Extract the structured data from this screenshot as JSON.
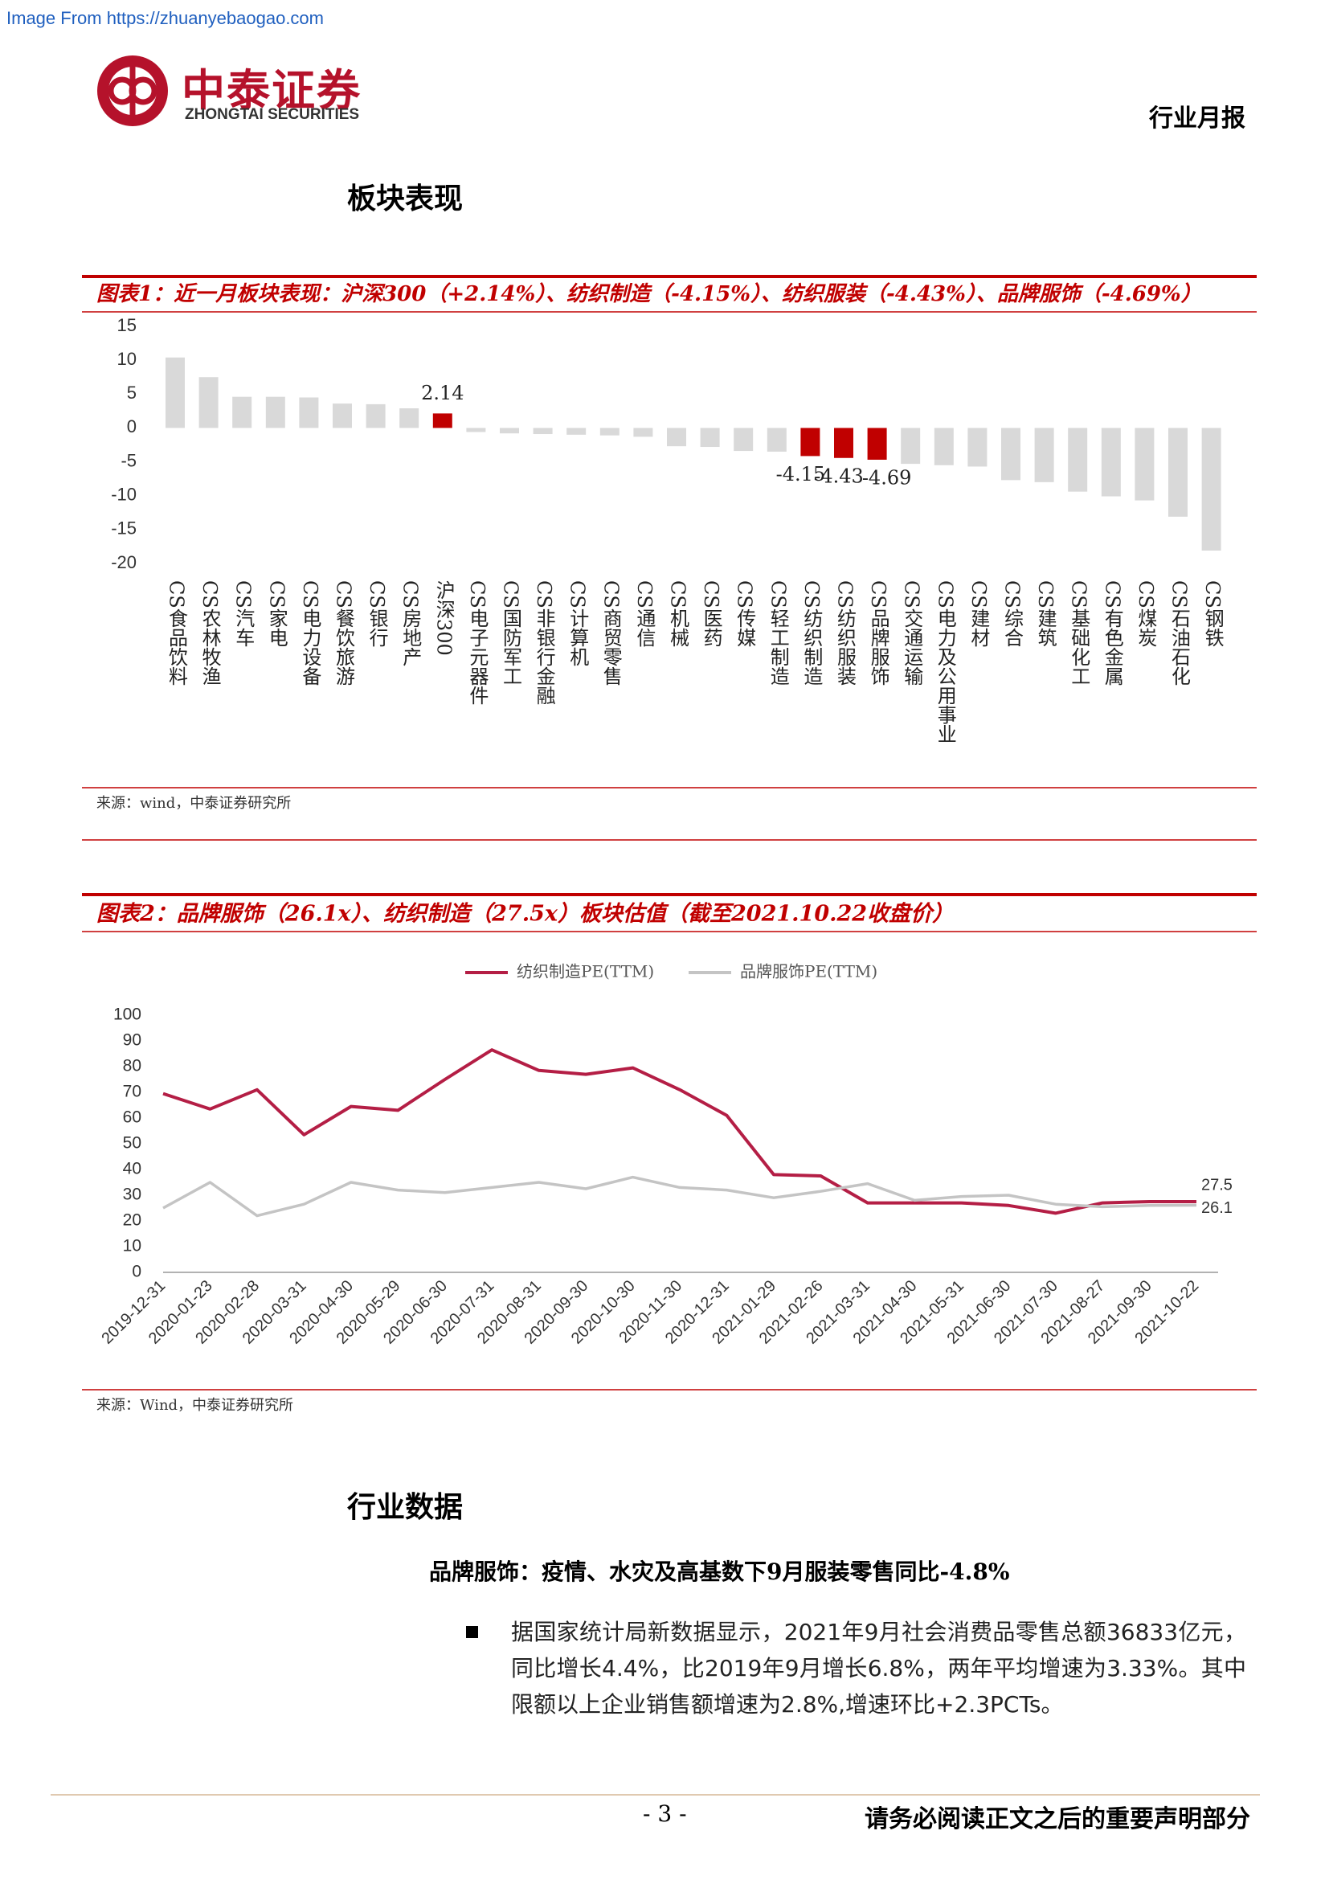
{
  "header": {
    "watermark": "Image From https://zhuanyebaogao.com",
    "logo_name": "中泰证券",
    "logo_subname": "ZHONGTAI SECURITIES",
    "report_type": "行业月报"
  },
  "section_1_title": "板块表现",
  "chart_data": [
    {
      "type": "bar",
      "title": "图表1：近一月板块表现：沪深300（+2.14%）、纺织制造（-4.15%）、纺织服装（-4.43%）、品牌服饰（-4.69%）",
      "categories": [
        "CS食品饮料",
        "CS农林牧渔",
        "CS汽车",
        "CS家电",
        "CS电力设备",
        "CS餐饮旅游",
        "CS银行",
        "CS房地产",
        "沪深300",
        "CS电子元器件",
        "CS国防军工",
        "CS非银行金融",
        "CS计算机",
        "CS商贸零售",
        "CS通信",
        "CS机械",
        "CS医药",
        "CS传媒",
        "CS轻工制造",
        "CS纺织制造",
        "CS纺织服装",
        "CS品牌服饰",
        "CS交通运输",
        "CS电力及公用事业",
        "CS建材",
        "CS综合",
        "CS建筑",
        "CS基础化工",
        "CS有色金属",
        "CS煤炭",
        "CS石油石化",
        "CS钢铁"
      ],
      "values": [
        10.4,
        7.5,
        4.6,
        4.6,
        4.5,
        3.6,
        3.5,
        2.9,
        2.14,
        -0.6,
        -0.8,
        -0.9,
        -1.0,
        -1.1,
        -1.3,
        -2.7,
        -2.8,
        -3.4,
        -3.5,
        -4.15,
        -4.43,
        -4.69,
        -5.3,
        -5.5,
        -5.7,
        -7.7,
        -8.0,
        -9.4,
        -10.1,
        -10.7,
        -13.1,
        -18.1
      ],
      "value_labels": [
        null,
        null,
        null,
        null,
        null,
        null,
        null,
        null,
        "2.14",
        null,
        null,
        null,
        null,
        null,
        null,
        null,
        null,
        null,
        null,
        "-4.15",
        "-4.43",
        "-4.69",
        null,
        null,
        null,
        null,
        null,
        null,
        null,
        null,
        null,
        null
      ],
      "colors": [
        "#d9d9d9",
        "#d9d9d9",
        "#d9d9d9",
        "#d9d9d9",
        "#d9d9d9",
        "#d9d9d9",
        "#d9d9d9",
        "#d9d9d9",
        "#c00000",
        "#d9d9d9",
        "#d9d9d9",
        "#d9d9d9",
        "#d9d9d9",
        "#d9d9d9",
        "#d9d9d9",
        "#d9d9d9",
        "#d9d9d9",
        "#d9d9d9",
        "#d9d9d9",
        "#c00000",
        "#c00000",
        "#c00000",
        "#d9d9d9",
        "#d9d9d9",
        "#d9d9d9",
        "#d9d9d9",
        "#d9d9d9",
        "#d9d9d9",
        "#d9d9d9",
        "#d9d9d9",
        "#d9d9d9",
        "#d9d9d9"
      ],
      "ylim": [
        -20,
        15
      ],
      "yticks": [
        -20,
        -15,
        -10,
        -5,
        0,
        5,
        10,
        15
      ],
      "grid": false,
      "source": "来源：wind，中泰证券研究所"
    },
    {
      "type": "line",
      "title": "图表2：品牌服饰（26.1x）、纺织制造（27.5x）板块估值（截至2021.10.22收盘价）",
      "x": [
        "2019-12-31",
        "2020-01-23",
        "2020-02-28",
        "2020-03-31",
        "2020-04-30",
        "2020-05-29",
        "2020-06-30",
        "2020-07-31",
        "2020-08-31",
        "2020-09-30",
        "2020-10-30",
        "2020-11-30",
        "2020-12-31",
        "2021-01-29",
        "2021-02-26",
        "2021-03-31",
        "2021-04-30",
        "2021-05-31",
        "2021-06-30",
        "2021-07-30",
        "2021-08-27",
        "2021-09-30",
        "2021-10-22"
      ],
      "series": [
        {
          "name": "纺织制造PE(TTM)",
          "color": "#b41e45",
          "values": [
            69.5,
            63.5,
            71,
            53.5,
            64.5,
            63,
            75,
            86.5,
            78.5,
            77,
            79.5,
            71,
            61,
            38,
            37.5,
            27,
            27,
            27,
            26,
            23,
            27,
            27.5,
            27.5
          ],
          "value_labels": [
            null,
            null,
            null,
            null,
            null,
            null,
            null,
            null,
            null,
            null,
            null,
            null,
            null,
            null,
            null,
            null,
            null,
            null,
            null,
            null,
            null,
            null,
            "27.5"
          ]
        },
        {
          "name": "品牌服饰PE(TTM)",
          "color": "#c4c4c4",
          "values": [
            25,
            35,
            22,
            26.5,
            35,
            32,
            31,
            33,
            35,
            32.5,
            37,
            33,
            32,
            29,
            31.5,
            34.5,
            28,
            29.5,
            30,
            26.5,
            25.5,
            26,
            26.1
          ],
          "value_labels": [
            null,
            null,
            null,
            null,
            null,
            null,
            null,
            null,
            null,
            null,
            null,
            null,
            null,
            null,
            null,
            null,
            null,
            null,
            null,
            null,
            null,
            null,
            "26.1"
          ]
        }
      ],
      "ylim": [
        0,
        100
      ],
      "yticks": [
        0,
        10,
        20,
        30,
        40,
        50,
        60,
        70,
        80,
        90,
        100
      ],
      "grid": false,
      "legend": "top",
      "source": "来源：Wind，中泰证券研究所"
    }
  ],
  "section_2": {
    "title": "行业数据",
    "subtitle": "品牌服饰：疫情、水灾及高基数下9月服装零售同比-4.8%",
    "bullets": [
      "据国家统计局新数据显示，2021年9月社会消费品零售总额36833亿元，同比增长4.4%，比2019年9月增长6.8%，两年平均增速为3.33%。其中限额以上企业销售额增速为2.8%,增速环比+2.3PCTs。"
    ]
  },
  "footer": {
    "page": "- 3 -",
    "disclaimer": "请务必阅读正文之后的重要声明部分"
  }
}
